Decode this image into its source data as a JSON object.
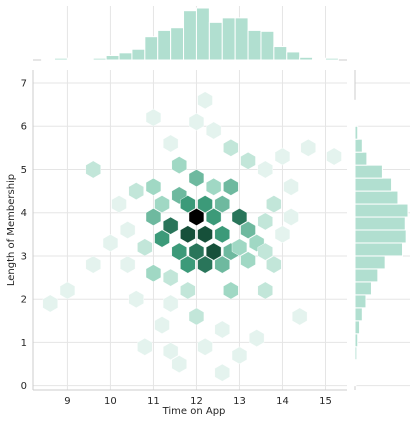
{
  "chart_data": {
    "type": "hexbin",
    "xlabel": "Time on App",
    "ylabel": "Length of Membership",
    "xlim": [
      8.2,
      15.5
    ],
    "ylim": [
      -0.1,
      7.3
    ],
    "xticks": [
      9,
      10,
      11,
      12,
      13,
      14,
      15
    ],
    "yticks": [
      0,
      1,
      2,
      3,
      4,
      5,
      6,
      7
    ],
    "color_dark": "#000000",
    "color_mid": "#3c9a79",
    "color_light": "#e4f3ee",
    "marginal_color": "#b1dfd0",
    "grid": true,
    "hexbins": [
      {
        "x": 9.0,
        "y": 2.2,
        "v": 1
      },
      {
        "x": 8.6,
        "y": 1.9,
        "v": 1
      },
      {
        "x": 9.6,
        "y": 2.8,
        "v": 1
      },
      {
        "x": 9.6,
        "y": 5.0,
        "v": 2
      },
      {
        "x": 10.0,
        "y": 3.3,
        "v": 1
      },
      {
        "x": 10.4,
        "y": 3.6,
        "v": 1
      },
      {
        "x": 10.6,
        "y": 4.5,
        "v": 2
      },
      {
        "x": 10.4,
        "y": 2.8,
        "v": 1
      },
      {
        "x": 10.6,
        "y": 2.0,
        "v": 1
      },
      {
        "x": 10.8,
        "y": 0.9,
        "v": 1
      },
      {
        "x": 10.8,
        "y": 3.2,
        "v": 2
      },
      {
        "x": 11.0,
        "y": 3.9,
        "v": 4
      },
      {
        "x": 11.0,
        "y": 4.6,
        "v": 3
      },
      {
        "x": 11.2,
        "y": 4.2,
        "v": 3
      },
      {
        "x": 11.2,
        "y": 3.4,
        "v": 5
      },
      {
        "x": 11.0,
        "y": 2.6,
        "v": 3
      },
      {
        "x": 11.4,
        "y": 2.5,
        "v": 2
      },
      {
        "x": 11.4,
        "y": 1.9,
        "v": 1
      },
      {
        "x": 11.2,
        "y": 1.4,
        "v": 1
      },
      {
        "x": 11.4,
        "y": 0.8,
        "v": 1
      },
      {
        "x": 11.4,
        "y": 3.7,
        "v": 6
      },
      {
        "x": 11.6,
        "y": 4.4,
        "v": 4
      },
      {
        "x": 11.6,
        "y": 3.1,
        "v": 5
      },
      {
        "x": 11.6,
        "y": 5.1,
        "v": 3
      },
      {
        "x": 11.8,
        "y": 3.5,
        "v": 7
      },
      {
        "x": 11.8,
        "y": 2.8,
        "v": 5
      },
      {
        "x": 11.8,
        "y": 4.2,
        "v": 5
      },
      {
        "x": 12.0,
        "y": 3.9,
        "v": 9
      },
      {
        "x": 12.0,
        "y": 3.1,
        "v": 6
      },
      {
        "x": 12.0,
        "y": 4.8,
        "v": 4
      },
      {
        "x": 12.2,
        "y": 3.5,
        "v": 7
      },
      {
        "x": 12.2,
        "y": 2.8,
        "v": 6
      },
      {
        "x": 12.2,
        "y": 4.2,
        "v": 5
      },
      {
        "x": 12.4,
        "y": 3.1,
        "v": 7
      },
      {
        "x": 12.4,
        "y": 3.9,
        "v": 5
      },
      {
        "x": 12.4,
        "y": 4.6,
        "v": 3
      },
      {
        "x": 12.6,
        "y": 3.5,
        "v": 5
      },
      {
        "x": 12.6,
        "y": 2.8,
        "v": 4
      },
      {
        "x": 12.6,
        "y": 4.2,
        "v": 4
      },
      {
        "x": 12.8,
        "y": 3.1,
        "v": 4
      },
      {
        "x": 12.8,
        "y": 4.6,
        "v": 4
      },
      {
        "x": 13.0,
        "y": 3.9,
        "v": 6
      },
      {
        "x": 13.0,
        "y": 3.2,
        "v": 3
      },
      {
        "x": 13.2,
        "y": 3.6,
        "v": 4
      },
      {
        "x": 13.2,
        "y": 2.9,
        "v": 3
      },
      {
        "x": 13.4,
        "y": 3.3,
        "v": 3
      },
      {
        "x": 13.6,
        "y": 3.8,
        "v": 2
      },
      {
        "x": 13.6,
        "y": 3.1,
        "v": 2
      },
      {
        "x": 13.8,
        "y": 4.2,
        "v": 2
      },
      {
        "x": 13.8,
        "y": 2.8,
        "v": 2
      },
      {
        "x": 14.0,
        "y": 3.5,
        "v": 1
      },
      {
        "x": 14.2,
        "y": 3.9,
        "v": 1
      },
      {
        "x": 12.0,
        "y": 6.1,
        "v": 1
      },
      {
        "x": 12.2,
        "y": 6.6,
        "v": 1
      },
      {
        "x": 12.4,
        "y": 5.9,
        "v": 1
      },
      {
        "x": 12.8,
        "y": 5.5,
        "v": 2
      },
      {
        "x": 13.2,
        "y": 5.2,
        "v": 2
      },
      {
        "x": 14.6,
        "y": 5.5,
        "v": 1
      },
      {
        "x": 15.2,
        "y": 5.3,
        "v": 1
      },
      {
        "x": 11.0,
        "y": 6.2,
        "v": 1
      },
      {
        "x": 12.0,
        "y": 1.6,
        "v": 2
      },
      {
        "x": 12.6,
        "y": 1.3,
        "v": 1
      },
      {
        "x": 12.2,
        "y": 0.9,
        "v": 1
      },
      {
        "x": 13.4,
        "y": 1.1,
        "v": 1
      },
      {
        "x": 13.0,
        "y": 0.7,
        "v": 1
      },
      {
        "x": 12.6,
        "y": 0.3,
        "v": 1
      },
      {
        "x": 11.6,
        "y": 0.5,
        "v": 1
      },
      {
        "x": 14.4,
        "y": 1.6,
        "v": 1
      },
      {
        "x": 13.6,
        "y": 2.2,
        "v": 2
      },
      {
        "x": 12.8,
        "y": 2.2,
        "v": 3
      },
      {
        "x": 11.8,
        "y": 2.2,
        "v": 2
      },
      {
        "x": 10.2,
        "y": 4.2,
        "v": 1
      },
      {
        "x": 11.4,
        "y": 5.6,
        "v": 1
      },
      {
        "x": 13.6,
        "y": 5.0,
        "v": 1
      },
      {
        "x": 14.0,
        "y": 5.3,
        "v": 1
      },
      {
        "x": 14.2,
        "y": 4.6,
        "v": 1
      }
    ],
    "x_marginal_hist": [
      {
        "x0": 8.4,
        "x1": 8.7,
        "count": 1
      },
      {
        "x0": 8.7,
        "x1": 9.0,
        "count": 2
      },
      {
        "x0": 9.0,
        "x1": 9.3,
        "count": 1
      },
      {
        "x0": 9.3,
        "x1": 9.6,
        "count": 1
      },
      {
        "x0": 9.6,
        "x1": 9.9,
        "count": 2
      },
      {
        "x0": 9.9,
        "x1": 10.2,
        "count": 5
      },
      {
        "x0": 10.2,
        "x1": 10.5,
        "count": 8
      },
      {
        "x0": 10.5,
        "x1": 10.8,
        "count": 12
      },
      {
        "x0": 10.8,
        "x1": 11.1,
        "count": 26
      },
      {
        "x0": 11.1,
        "x1": 11.4,
        "count": 33
      },
      {
        "x0": 11.4,
        "x1": 11.7,
        "count": 36
      },
      {
        "x0": 11.7,
        "x1": 12.0,
        "count": 55
      },
      {
        "x0": 12.0,
        "x1": 12.3,
        "count": 58
      },
      {
        "x0": 12.3,
        "x1": 12.6,
        "count": 42
      },
      {
        "x0": 12.6,
        "x1": 12.9,
        "count": 47
      },
      {
        "x0": 12.9,
        "x1": 13.2,
        "count": 47
      },
      {
        "x0": 13.2,
        "x1": 13.5,
        "count": 33
      },
      {
        "x0": 13.5,
        "x1": 13.8,
        "count": 32
      },
      {
        "x0": 13.8,
        "x1": 14.1,
        "count": 15
      },
      {
        "x0": 14.1,
        "x1": 14.4,
        "count": 9
      },
      {
        "x0": 14.4,
        "x1": 14.7,
        "count": 3
      },
      {
        "x0": 14.7,
        "x1": 15.0,
        "count": 1
      },
      {
        "x0": 15.0,
        "x1": 15.3,
        "count": 2
      }
    ],
    "y_marginal_hist": [
      {
        "y0": 0.0,
        "y1": 0.3,
        "count": 1
      },
      {
        "y0": 0.3,
        "y1": 0.6,
        "count": 1
      },
      {
        "y0": 0.6,
        "y1": 0.9,
        "count": 2
      },
      {
        "y0": 0.9,
        "y1": 1.2,
        "count": 3
      },
      {
        "y0": 1.2,
        "y1": 1.5,
        "count": 5
      },
      {
        "y0": 1.5,
        "y1": 1.8,
        "count": 8
      },
      {
        "y0": 1.8,
        "y1": 2.1,
        "count": 12
      },
      {
        "y0": 2.1,
        "y1": 2.4,
        "count": 18
      },
      {
        "y0": 2.4,
        "y1": 2.7,
        "count": 25
      },
      {
        "y0": 2.7,
        "y1": 3.0,
        "count": 33
      },
      {
        "y0": 3.0,
        "y1": 3.3,
        "count": 52
      },
      {
        "y0": 3.3,
        "y1": 3.6,
        "count": 56
      },
      {
        "y0": 3.6,
        "y1": 3.9,
        "count": 55
      },
      {
        "y0": 3.9,
        "y1": 4.2,
        "count": 58
      },
      {
        "y0": 4.2,
        "y1": 4.5,
        "count": 47
      },
      {
        "y0": 4.5,
        "y1": 4.8,
        "count": 40
      },
      {
        "y0": 4.8,
        "y1": 5.1,
        "count": 30
      },
      {
        "y0": 5.1,
        "y1": 5.4,
        "count": 13
      },
      {
        "y0": 5.4,
        "y1": 5.7,
        "count": 8
      },
      {
        "y0": 5.7,
        "y1": 6.0,
        "count": 3
      },
      {
        "y0": 6.0,
        "y1": 6.3,
        "count": 1
      },
      {
        "y0": 6.3,
        "y1": 6.6,
        "count": 1
      }
    ]
  }
}
